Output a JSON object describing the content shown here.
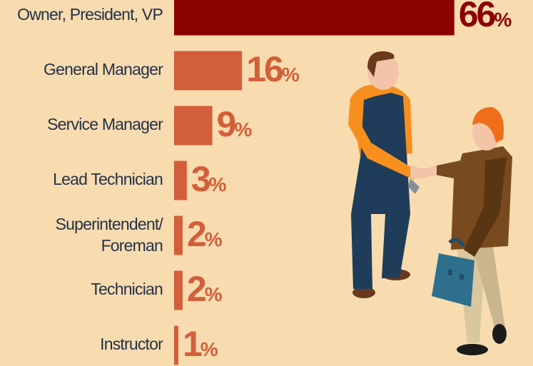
{
  "chart_data": {
    "type": "bar",
    "orientation": "horizontal",
    "categories": [
      "Owner, President, VP",
      "General Manager",
      "Service Manager",
      "Lead Technician",
      "Superintendent/Foreman",
      "Technician",
      "Instructor"
    ],
    "values": [
      66,
      16,
      9,
      3,
      2,
      2,
      1
    ],
    "value_labels": [
      "66%",
      "16%",
      "9%",
      "3%",
      "2%",
      "2%",
      "1%"
    ],
    "colors": [
      "#8b0000",
      "#d35f3a",
      "#d35f3a",
      "#d35f3a",
      "#d35f3a",
      "#d35f3a",
      "#d35f3a"
    ]
  }
}
